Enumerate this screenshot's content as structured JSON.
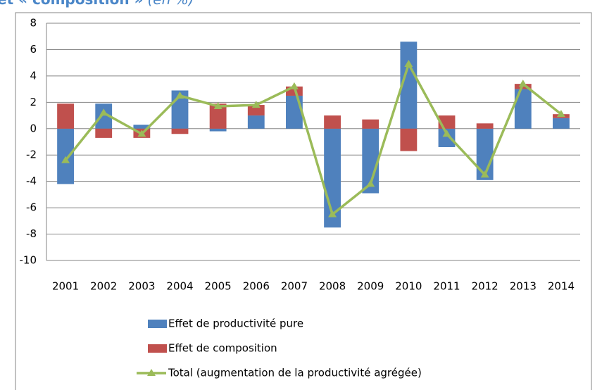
{
  "chart_data": {
    "type": "bar",
    "title": "et « composition »",
    "title_note": "(en %)",
    "categories": [
      "2001",
      "2002",
      "2003",
      "2004",
      "2005",
      "2006",
      "2007",
      "2008",
      "2009",
      "2010",
      "2011",
      "2012",
      "2013",
      "2014"
    ],
    "series": [
      {
        "name": "Effet de productivité pure",
        "color": "#4f81bd",
        "values": [
          -4.2,
          1.9,
          0.3,
          2.9,
          -0.2,
          1.0,
          2.5,
          -7.5,
          -4.9,
          6.6,
          -1.4,
          -3.9,
          3.0,
          0.8
        ]
      },
      {
        "name": "Effet de composition",
        "color": "#c0504d",
        "values": [
          1.9,
          -0.7,
          -0.7,
          -0.4,
          1.9,
          0.8,
          0.7,
          1.0,
          0.7,
          -1.7,
          1.0,
          0.4,
          0.4,
          0.3
        ]
      },
      {
        "name": "Total (augmentation de la productivité agrégée)",
        "color": "#9bbb59",
        "type": "line",
        "values": [
          -2.4,
          1.2,
          -0.4,
          2.5,
          1.7,
          1.8,
          3.2,
          -6.5,
          -4.2,
          4.9,
          -0.4,
          -3.5,
          3.4,
          1.1
        ]
      }
    ],
    "ylim": [
      -10,
      8
    ],
    "yticks": [
      -10,
      -8,
      -6,
      -4,
      -2,
      0,
      2,
      4,
      6,
      8
    ],
    "grid": true,
    "stacked": true,
    "legend": "bottom"
  }
}
